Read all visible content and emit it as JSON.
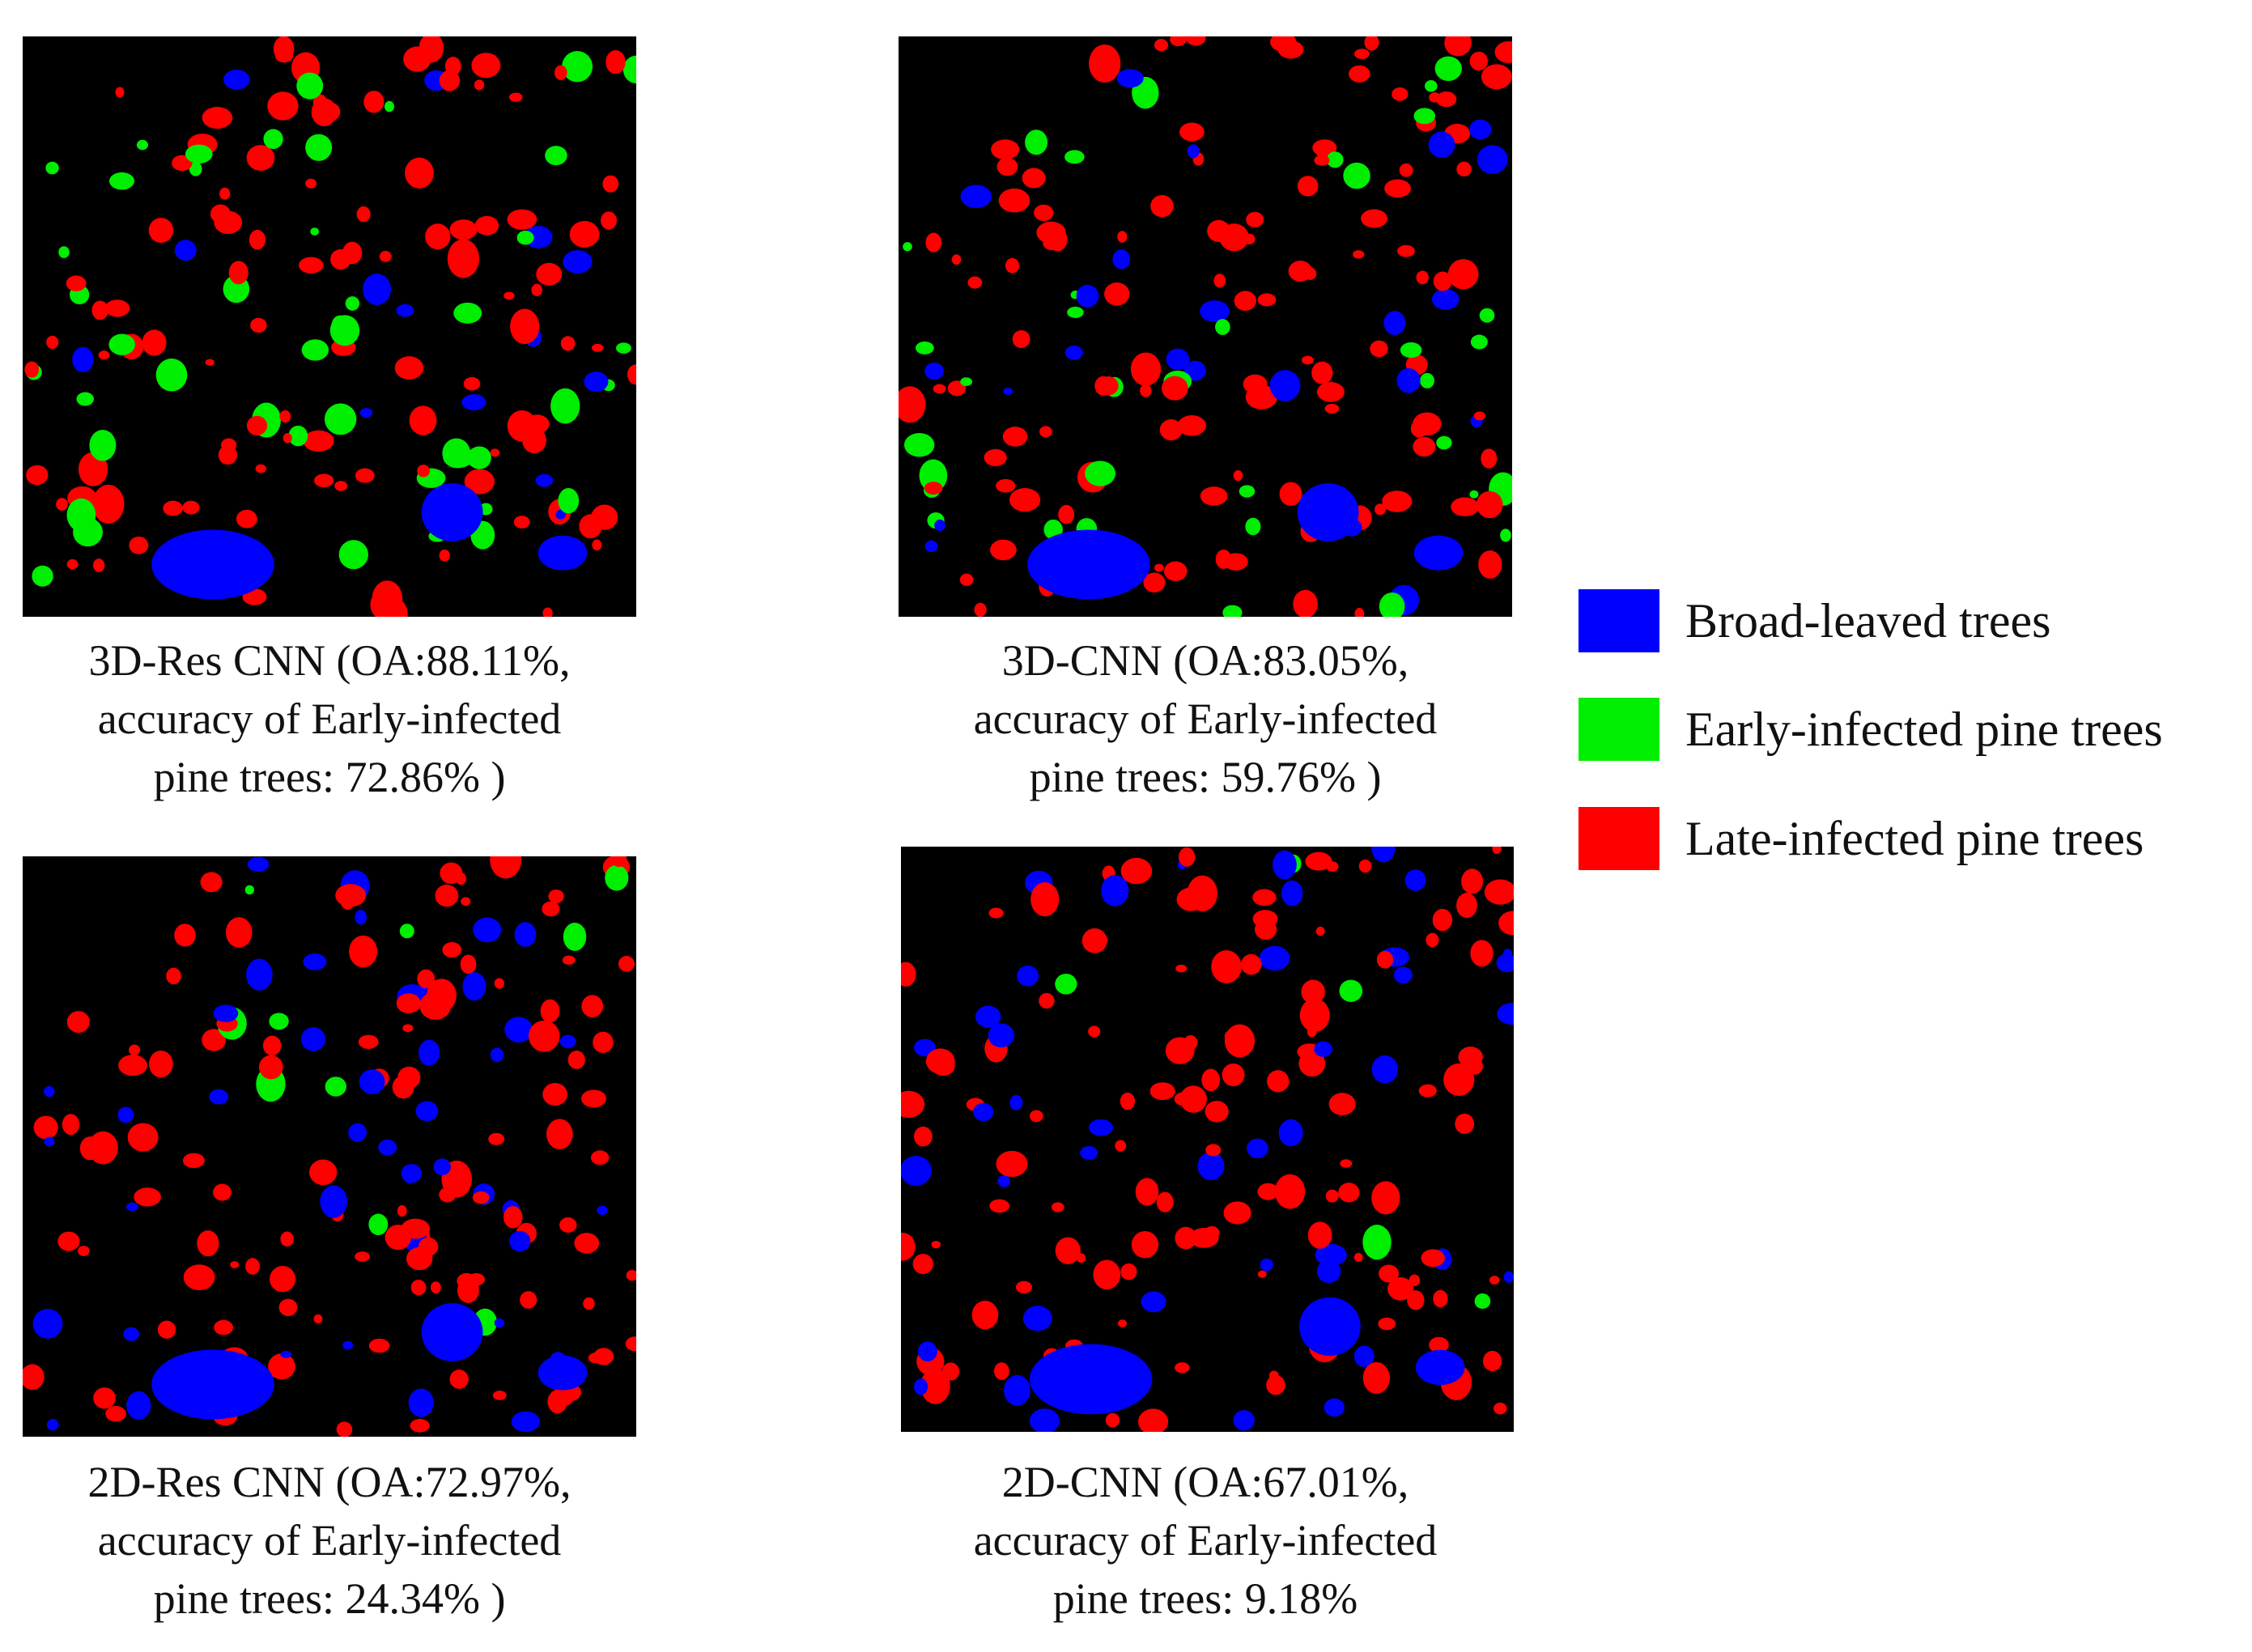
{
  "panels": [
    {
      "id": "3d-res-cnn",
      "caption": [
        "3D-Res CNN (OA:88.11%,",
        "accuracy of Early-infected",
        "pine trees: 72.86% )"
      ],
      "green_ratio": 0.3,
      "blue_ratio": 0.1
    },
    {
      "id": "3d-cnn",
      "caption": [
        "3D-CNN (OA:83.05%,",
        "accuracy of Early-infected",
        "pine trees: 59.76% )"
      ],
      "green_ratio": 0.22,
      "blue_ratio": 0.14
    },
    {
      "id": "2d-res-cnn",
      "caption": [
        "2D-Res CNN (OA:72.97%,",
        "accuracy of Early-infected",
        "pine trees: 24.34% )"
      ],
      "green_ratio": 0.08,
      "blue_ratio": 0.18
    },
    {
      "id": "2d-cnn",
      "caption": [
        "2D-CNN (OA:67.01%,",
        "accuracy of Early-infected",
        "pine trees: 9.18%"
      ],
      "green_ratio": 0.03,
      "blue_ratio": 0.24
    }
  ],
  "legend": [
    {
      "label": "Broad-leaved trees",
      "color": "#0000ff"
    },
    {
      "label": "Early-infected pine trees",
      "color": "#00ee00"
    },
    {
      "label": "Late-infected pine trees",
      "color": "#ff0000"
    }
  ]
}
